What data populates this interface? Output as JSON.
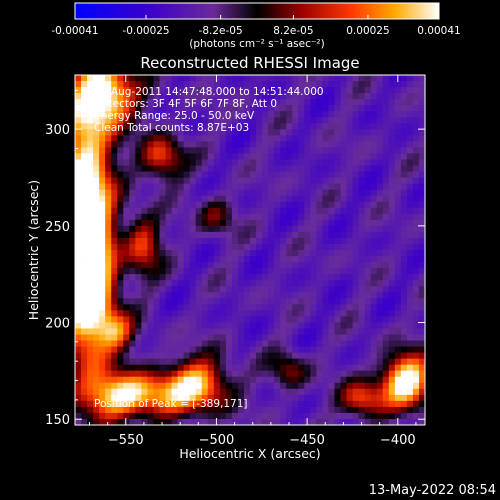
{
  "chart_data": {
    "type": "heatmap",
    "title": "Reconstructed RHESSI Image",
    "xlabel": "Heliocentric X (arcsec)",
    "ylabel": "Heliocentric Y (arcsec)",
    "xlim": [
      -578,
      -385
    ],
    "ylim": [
      147,
      328
    ],
    "xticks": [
      -550,
      -500,
      -450,
      -400
    ],
    "yticks": [
      150,
      200,
      250,
      300
    ],
    "colorbar": {
      "label": "(photons cm⁻² s⁻¹ asec⁻²)",
      "range": [
        -0.00041,
        0.00041
      ],
      "tick_labels": [
        "-0.00041",
        "-0.00025",
        "-8.2e-05",
        "8.2e-05",
        "0.00025",
        "0.00041"
      ],
      "tick_values": [
        -0.00041,
        -0.00025,
        -8.2e-05,
        8.2e-05,
        0.00025,
        0.00041
      ]
    },
    "annotations": [
      "19-Aug-2011 14:47:48.000 to 14:51:44.000",
      "Detectors: 3F 4F 5F 6F 7F 8F, Att 0",
      "Energy Range: 25.0 - 50.0 keV",
      "Clean  Total counts: 8.87E+03"
    ],
    "peak_label": "Position of Peak = [-389,171]",
    "peak_position": [
      -389,
      171
    ],
    "grid": false
  },
  "footer": {
    "date": "13-May-2022 08:54"
  }
}
